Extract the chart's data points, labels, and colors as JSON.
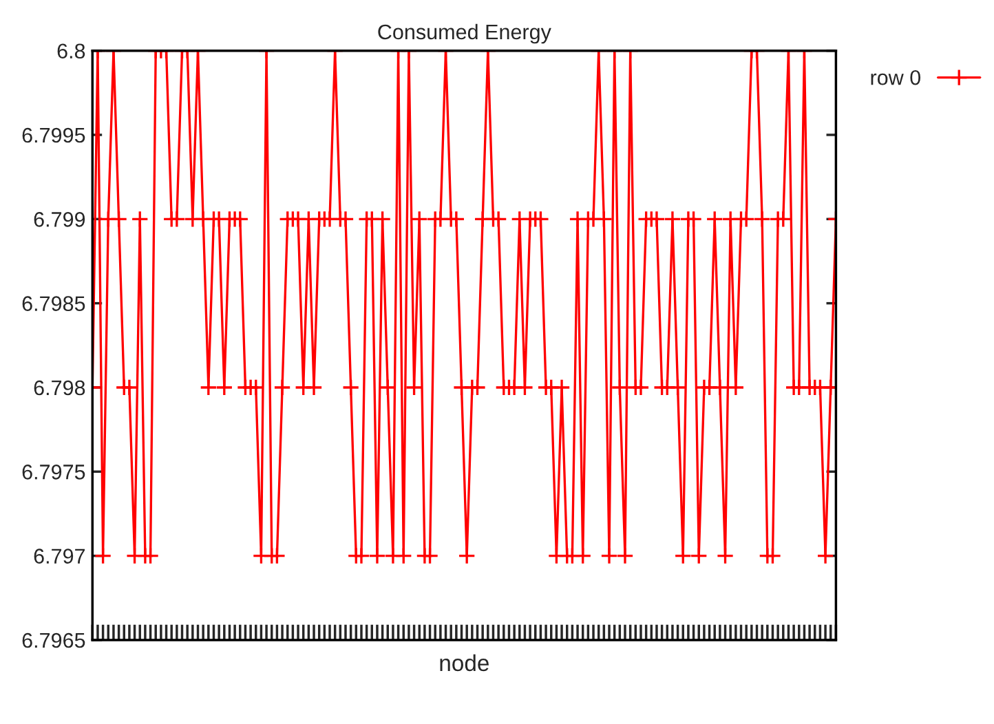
{
  "chart_data": {
    "type": "line",
    "title": "Consumed Energy",
    "xlabel": "node",
    "categories": [
      null,
      null,
      null,
      null,
      null,
      null,
      null,
      null,
      null,
      null,
      null,
      null,
      null,
      null,
      null,
      null,
      null,
      null,
      null,
      null,
      null,
      null,
      null,
      null,
      null,
      null,
      null,
      null,
      null,
      null,
      null,
      null,
      null,
      null,
      null,
      null,
      null,
      null,
      null,
      null,
      null,
      null,
      null,
      null,
      null,
      null,
      null,
      null,
      null,
      null,
      null,
      null,
      null,
      null,
      null,
      null,
      null,
      null,
      null,
      null,
      null,
      null,
      null,
      null,
      null,
      null,
      null,
      null,
      null,
      null,
      null,
      null,
      null,
      null,
      null,
      null,
      null,
      null,
      null,
      null,
      null,
      null,
      null,
      null,
      null,
      null,
      null,
      null,
      null,
      null,
      null,
      null,
      null,
      null,
      null,
      null,
      null,
      null,
      null,
      null,
      null,
      null,
      null,
      null,
      null,
      null,
      null,
      null,
      null,
      null,
      null,
      null,
      null,
      null,
      null,
      null,
      null,
      null,
      null,
      null,
      null,
      null,
      null,
      null,
      null,
      null,
      null,
      null,
      null,
      null,
      null,
      null,
      null,
      null,
      null,
      null,
      null,
      null,
      null,
      null,
      null,
      null
    ],
    "series": [
      {
        "name": "row 0",
        "color": "#ff0000",
        "values": [
          6.798,
          6.8,
          6.797,
          6.799,
          6.8,
          6.799,
          6.798,
          6.798,
          6.797,
          6.799,
          6.797,
          6.797,
          6.8,
          6.8,
          6.8,
          6.799,
          6.799,
          6.8,
          6.8,
          6.799,
          6.8,
          6.799,
          6.798,
          6.799,
          6.799,
          6.798,
          6.799,
          6.799,
          6.799,
          6.798,
          6.798,
          6.798,
          6.797,
          6.8,
          6.797,
          6.797,
          6.798,
          6.799,
          6.799,
          6.799,
          6.798,
          6.799,
          6.798,
          6.799,
          6.799,
          6.799,
          6.8,
          6.799,
          6.799,
          6.798,
          6.797,
          6.797,
          6.799,
          6.799,
          6.797,
          6.799,
          6.798,
          6.797,
          6.8,
          6.797,
          6.8,
          6.798,
          6.799,
          6.797,
          6.797,
          6.799,
          6.799,
          6.8,
          6.799,
          6.799,
          6.798,
          6.797,
          6.798,
          6.798,
          6.799,
          6.8,
          6.799,
          6.799,
          6.798,
          6.798,
          6.798,
          6.799,
          6.798,
          6.799,
          6.799,
          6.799,
          6.798,
          6.798,
          6.797,
          6.798,
          6.797,
          6.797,
          6.799,
          6.797,
          6.799,
          6.799,
          6.8,
          6.799,
          6.797,
          6.8,
          6.798,
          6.797,
          6.8,
          6.798,
          6.798,
          6.799,
          6.799,
          6.799,
          6.798,
          6.798,
          6.799,
          6.798,
          6.797,
          6.799,
          6.799,
          6.797,
          6.798,
          6.798,
          6.799,
          6.798,
          6.797,
          6.799,
          6.798,
          6.799,
          6.799,
          6.8,
          6.8,
          6.799,
          6.797,
          6.797,
          6.799,
          6.799,
          6.8,
          6.798,
          6.798,
          6.8,
          6.798,
          6.798,
          6.798,
          6.797,
          6.798,
          6.799
        ]
      }
    ],
    "ylim": [
      6.7965,
      6.8
    ],
    "yticks": [
      6.7965,
      6.797,
      6.7975,
      6.798,
      6.7985,
      6.799,
      6.7995,
      6.8
    ],
    "marker": "cross",
    "line_style": "solid",
    "legend": "top right",
    "grid": false
  }
}
